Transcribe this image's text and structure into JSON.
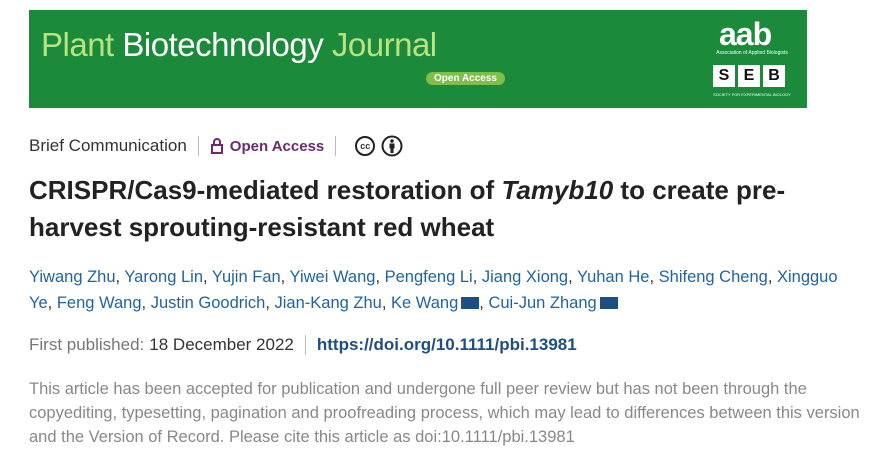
{
  "banner": {
    "journal_part1": "Plant",
    "journal_part2": "Biotechnology",
    "journal_part3": "Journal",
    "open_access": "Open Access",
    "aab": "aab",
    "aab_full": "Association of Applied Biologists",
    "seb": [
      "S",
      "E",
      "B"
    ],
    "seb_full": "SOCIETY FOR EXPERIMENTAL BIOLOGY"
  },
  "header": {
    "article_type": "Brief Communication",
    "access": "Open Access",
    "license_cc": "cc"
  },
  "title": {
    "part1": "CRISPR/Cas9-mediated restoration of ",
    "italic": "Tamyb10",
    "part2": " to create pre-harvest sprouting-resistant red wheat"
  },
  "authors": [
    "Yiwang Zhu",
    "Yarong Lin",
    "Yujin Fan",
    "Yiwei Wang",
    "Pengfeng Li",
    "Jiang Xiong",
    "Yuhan He",
    "Shifeng Cheng",
    "Xingguo Ye",
    "Feng Wang",
    "Justin Goodrich",
    "Jian-Kang Zhu",
    "Ke Wang",
    "Cui-Jun Zhang"
  ],
  "publication": {
    "label": "First published:",
    "date": "18 December 2022",
    "doi": "https://doi.org/10.1111/pbi.13981"
  },
  "notice": "This article has been accepted for publication and undergone full peer review but has not been through the copyediting, typesetting, pagination and proofreading process, which may lead to differences between this version and the Version of Record. Please cite this article as doi:10.1111/pbi.13981"
}
